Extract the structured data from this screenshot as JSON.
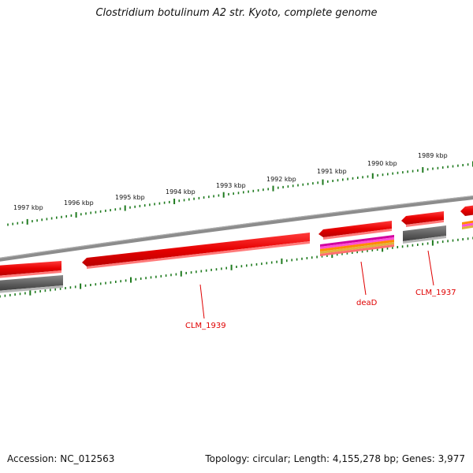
{
  "title": "Clostridium botulinum A2 str. Kyoto, complete genome",
  "footer": {
    "accession": "Accession: NC_012563",
    "info": "Topology: circular; Length: 4,155,278 bp; Genes: 3,977"
  },
  "kbp_labels": [
    "1997 kbp",
    "1996 kbp",
    "1995 kbp",
    "1994 kbp",
    "1993 kbp",
    "1992 kbp",
    "1991 kbp",
    "1990 kbp",
    "1989 kbp"
  ],
  "gene_labels": [
    "CLM_1939",
    "deaD",
    "CLM_1937"
  ],
  "colors": {
    "backbone": "#8c8c8c",
    "gene_red": "#ff0000",
    "gene_red_dark": "#c80000",
    "gene_gray": "#6e6e6e",
    "tick_green": "#1e7a1e",
    "label_red": "#e00000"
  }
}
